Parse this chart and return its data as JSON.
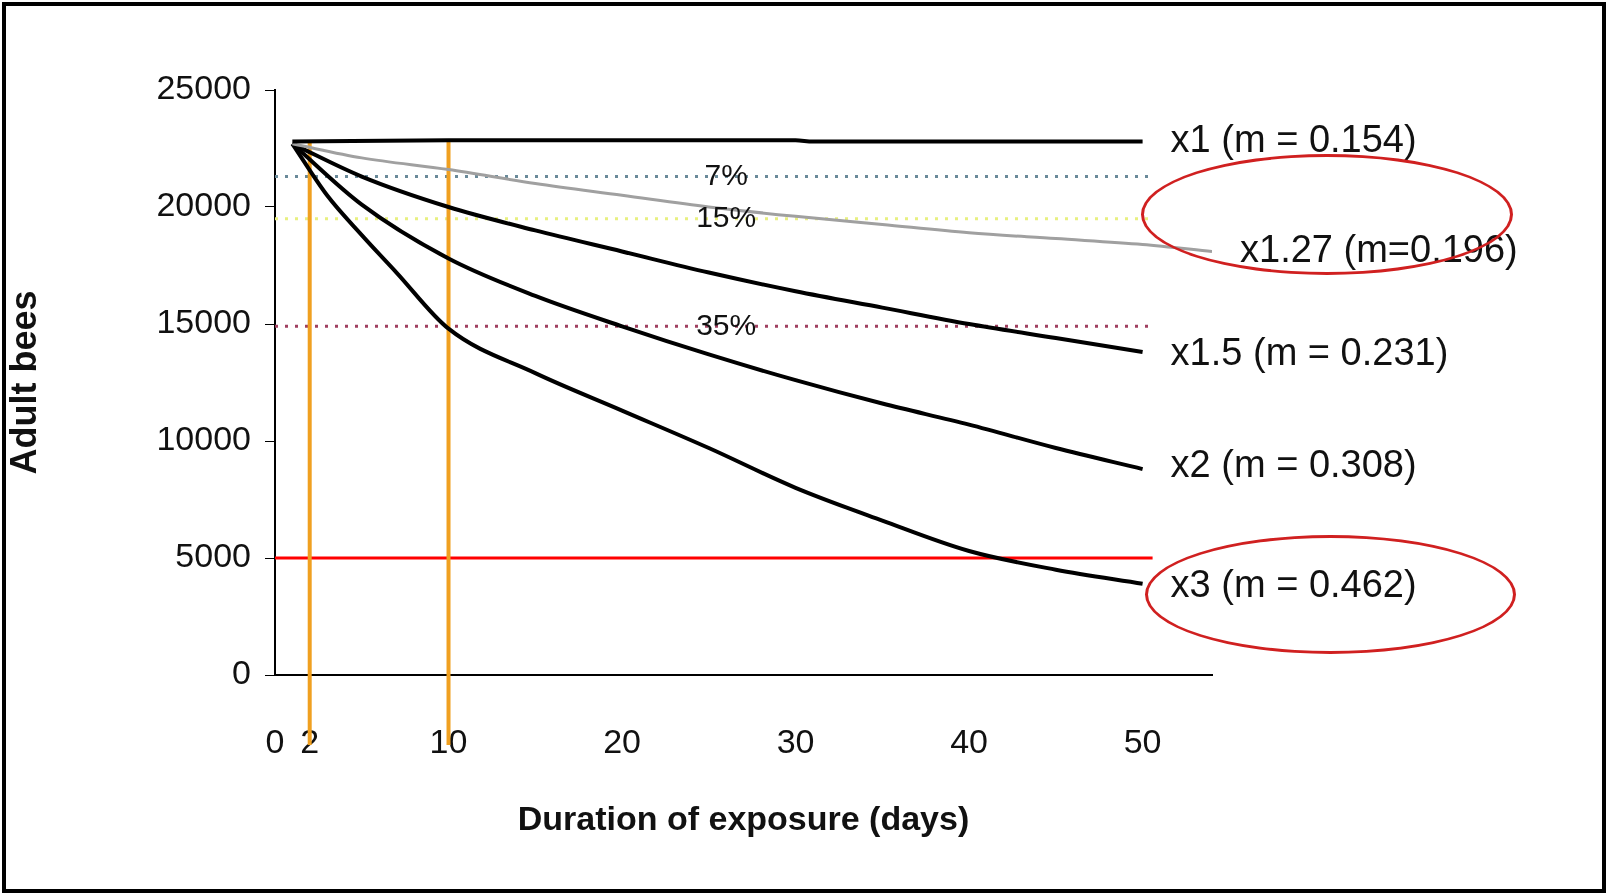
{
  "chart_data": {
    "type": "line",
    "xlabel": "Duration of exposure (days)",
    "ylabel": "Adult bees",
    "xlim": [
      0,
      54
    ],
    "xticks": [
      0,
      2,
      10,
      20,
      30,
      40,
      50
    ],
    "ylim": [
      0,
      25000
    ],
    "yticks": [
      0,
      5000,
      10000,
      15000,
      20000,
      25000
    ],
    "grid": false,
    "legend": false,
    "marker": "none",
    "line_style": "solid",
    "series": [
      {
        "color": "#000000",
        "x": [
          1,
          10,
          20,
          30,
          31,
          40,
          50
        ],
        "values": [
          22800,
          22850,
          22850,
          22850,
          22800,
          22800,
          22800
        ]
      },
      {
        "color": "#a0a0a0",
        "x": [
          1,
          5,
          10,
          15,
          20,
          25,
          30,
          35,
          40,
          45,
          50,
          54
        ],
        "values": [
          22700,
          22100,
          21600,
          21000,
          20500,
          20000,
          19600,
          19250,
          18900,
          18650,
          18400,
          18100
        ]
      },
      {
        "color": "#000000",
        "x": [
          1,
          5,
          10,
          15,
          20,
          25,
          30,
          35,
          40,
          45,
          50
        ],
        "values": [
          22700,
          21300,
          20000,
          19000,
          18100,
          17200,
          16400,
          15700,
          15000,
          14400,
          13800
        ]
      },
      {
        "color": "#000000",
        "x": [
          1,
          5,
          10,
          15,
          20,
          25,
          30,
          35,
          40,
          45,
          50
        ],
        "values": [
          22700,
          20100,
          17800,
          16200,
          14900,
          13700,
          12600,
          11600,
          10700,
          9700,
          8800
        ]
      },
      {
        "color": "#000000",
        "x": [
          1,
          3,
          5,
          7,
          10,
          15,
          20,
          25,
          30,
          35,
          40,
          45,
          50
        ],
        "values": [
          22700,
          20500,
          18800,
          17200,
          14800,
          12900,
          11300,
          9700,
          8000,
          6600,
          5300,
          4500,
          3900
        ]
      }
    ],
    "ref_lines": [
      {
        "axis": "y",
        "value": 21300,
        "color": "#6a8a9a",
        "line_style": "dotted"
      },
      {
        "axis": "y",
        "value": 19500,
        "color": "#e8f080",
        "line_style": "dotted"
      },
      {
        "axis": "y",
        "value": 14900,
        "color": "#a04060",
        "line_style": "dotted"
      },
      {
        "axis": "y",
        "value": 5000,
        "color": "#ff0000",
        "line_style": "solid"
      },
      {
        "axis": "x",
        "value": 2,
        "color": "#f0a020",
        "line_style": "solid"
      },
      {
        "axis": "x",
        "value": 10,
        "color": "#f0a020",
        "line_style": "solid"
      }
    ],
    "annotations": [
      {
        "text": "x1 (m = 0.154)",
        "x": 50,
        "y": 22800
      },
      {
        "text": "x1.27 (m=0.196)",
        "x": 54,
        "y": 18100
      },
      {
        "text": "7%",
        "x": 26,
        "y": 21300
      },
      {
        "text": "15%",
        "x": 26,
        "y": 19500
      },
      {
        "text": "35%",
        "x": 26,
        "y": 14900
      },
      {
        "text": "x1.5 (m = 0.231)",
        "x": 50,
        "y": 13700
      },
      {
        "text": "x2 (m = 0.308)",
        "x": 50,
        "y": 8900
      },
      {
        "text": "x3 (m = 0.462)",
        "x": 50,
        "y": 3800
      }
    ]
  }
}
